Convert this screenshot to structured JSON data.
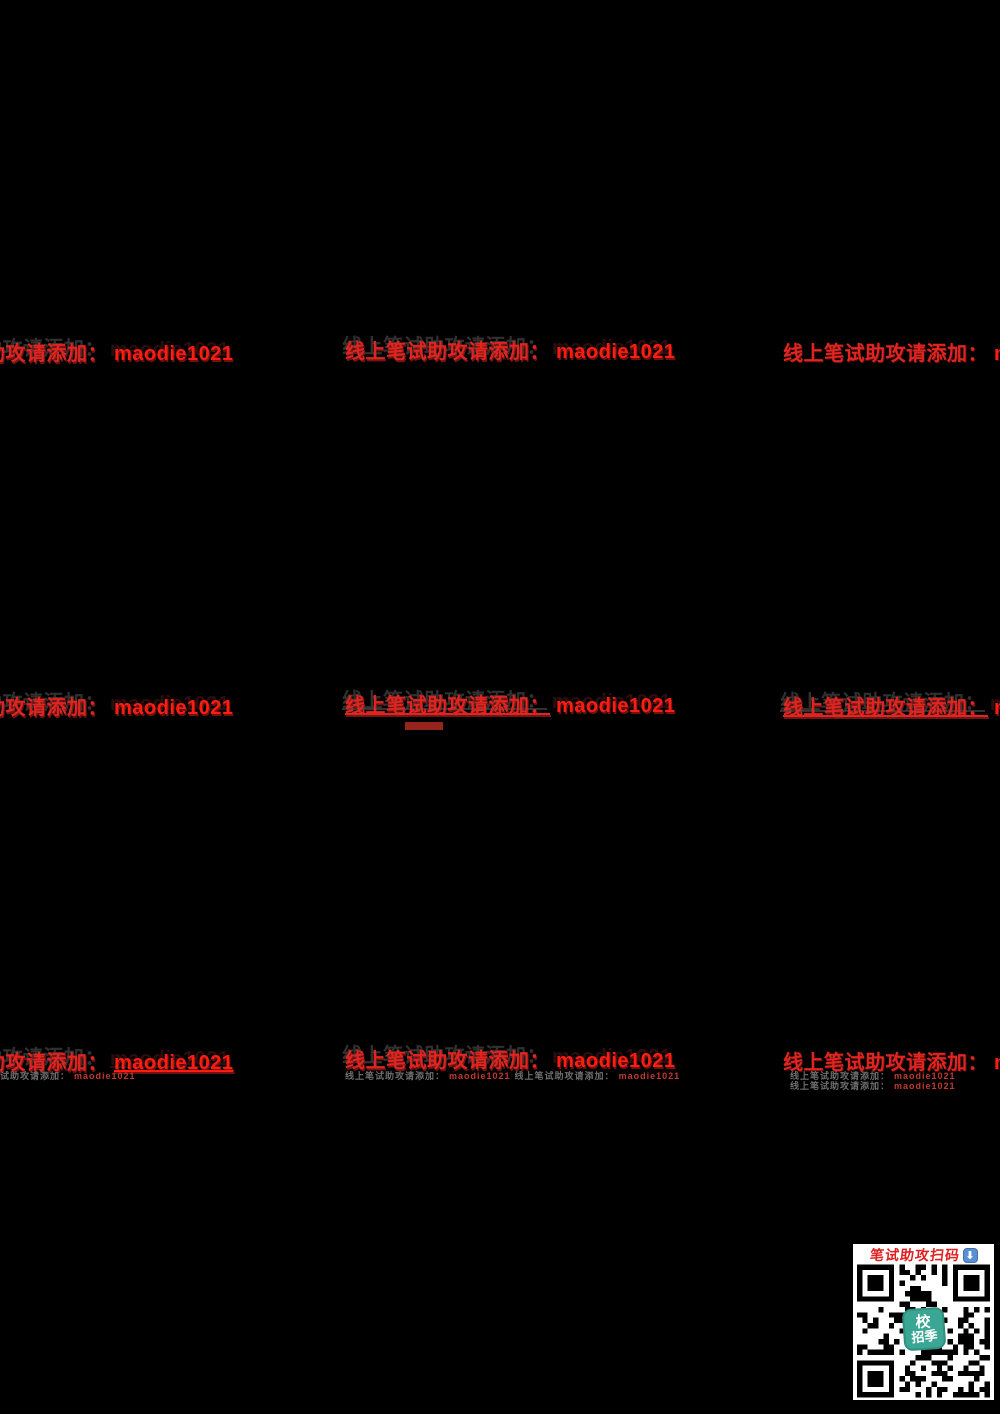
{
  "watermark": {
    "prefix_cn": "线上笔试助攻请添加：",
    "account": "maodie1021",
    "tiny_cn": "线上笔试助攻请添加：",
    "tiny_account": "maodie1021"
  },
  "qr_panel": {
    "title": "笔试助攻扫码",
    "arrow_glyph": "⬇",
    "logo_line1": "校",
    "logo_line2": "招季"
  },
  "colors": {
    "background": "#000000",
    "watermark_red": "#df2520",
    "account_red": "#ff1d12",
    "qr_logo_teal": "#3aa693",
    "arrow_blue": "#5b8fd4"
  }
}
